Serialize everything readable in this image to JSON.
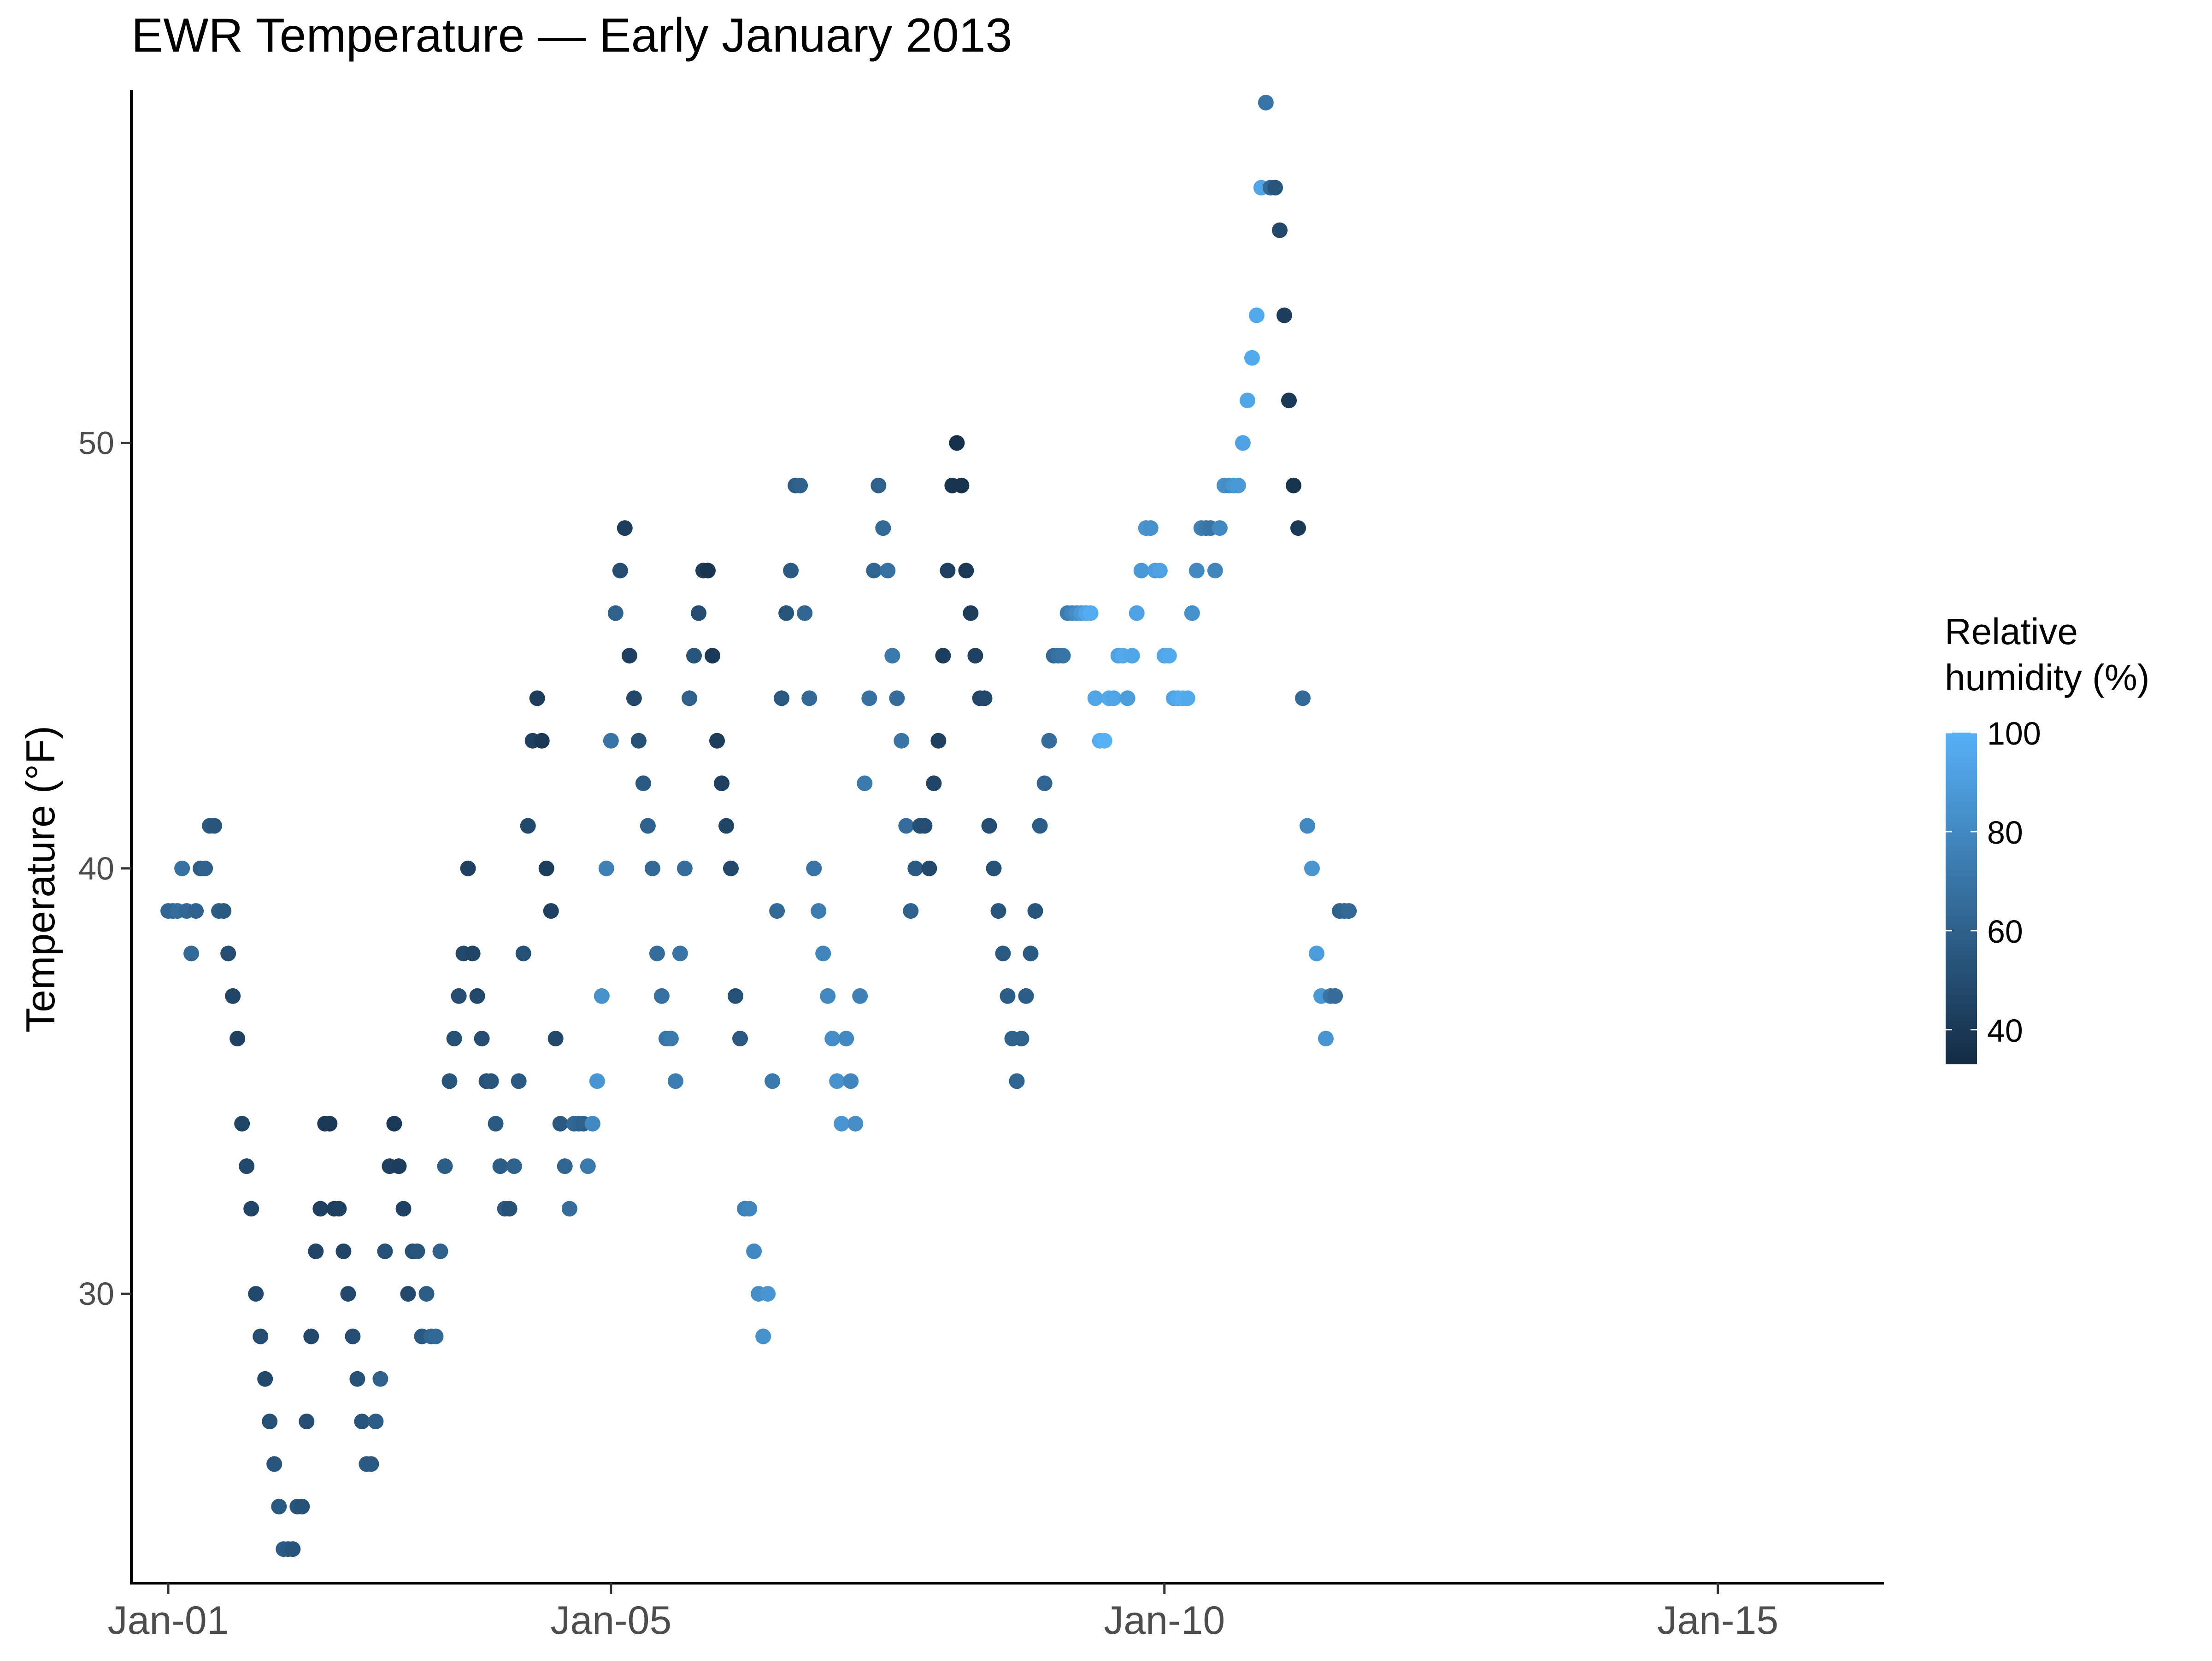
{
  "chart_data": {
    "type": "scatter",
    "title": "EWR Temperature — Early January 2013",
    "xlabel": "",
    "ylabel": "Temperature (°F)",
    "x_unit": "date",
    "x_ticks": [
      "2013-01-01",
      "2013-01-05",
      "2013-01-10",
      "2013-01-15"
    ],
    "x_tick_labels": [
      "Jan-01",
      "Jan-05",
      "Jan-10",
      "Jan-15"
    ],
    "xlim": [
      "2012-12-31T16:00",
      "2013-01-16T12:00"
    ],
    "y_ticks": [
      30,
      40,
      50
    ],
    "ylim": [
      23.2,
      58.3
    ],
    "grid": false,
    "legend": {
      "title_lines": [
        "Relative",
        "humidity (%)"
      ],
      "position": "right",
      "ticks": [
        40,
        60,
        80,
        100
      ],
      "range": [
        33,
        100
      ],
      "color_low": "#132B43",
      "color_high": "#56B1F7"
    },
    "point_fields": [
      "datetime",
      "temp_f",
      "humidity_pct"
    ],
    "points": [
      [
        "2013-01-01T00:00",
        39,
        62
      ],
      [
        "2013-01-01T01:00",
        39,
        62
      ],
      [
        "2013-01-01T02:00",
        39,
        66
      ],
      [
        "2013-01-01T03:00",
        40,
        68
      ],
      [
        "2013-01-01T04:00",
        39,
        63
      ],
      [
        "2013-01-01T05:00",
        38,
        64
      ],
      [
        "2013-01-01T06:00",
        39,
        60
      ],
      [
        "2013-01-01T07:00",
        40,
        58
      ],
      [
        "2013-01-01T08:00",
        40,
        60
      ],
      [
        "2013-01-01T09:00",
        41,
        56
      ],
      [
        "2013-01-01T10:00",
        41,
        54
      ],
      [
        "2013-01-01T11:00",
        39,
        58
      ],
      [
        "2013-01-01T12:00",
        39,
        56
      ],
      [
        "2013-01-01T13:00",
        38,
        50
      ],
      [
        "2013-01-01T14:00",
        37,
        46
      ],
      [
        "2013-01-01T15:00",
        36,
        44
      ],
      [
        "2013-01-01T16:00",
        34,
        46
      ],
      [
        "2013-01-01T17:00",
        33,
        48
      ],
      [
        "2013-01-01T18:00",
        32,
        46
      ],
      [
        "2013-01-01T19:00",
        30,
        48
      ],
      [
        "2013-01-01T20:00",
        29,
        50
      ],
      [
        "2013-01-01T21:00",
        28,
        48
      ],
      [
        "2013-01-01T22:00",
        27,
        52
      ],
      [
        "2013-01-01T23:00",
        26,
        54
      ],
      [
        "2013-01-02T00:00",
        25,
        56
      ],
      [
        "2013-01-02T01:00",
        24,
        58
      ],
      [
        "2013-01-02T02:00",
        24,
        56
      ],
      [
        "2013-01-02T03:00",
        24,
        54
      ],
      [
        "2013-01-02T04:00",
        25,
        54
      ],
      [
        "2013-01-02T05:00",
        25,
        52
      ],
      [
        "2013-01-02T06:00",
        27,
        50
      ],
      [
        "2013-01-02T07:00",
        29,
        48
      ],
      [
        "2013-01-02T08:00",
        31,
        46
      ],
      [
        "2013-01-02T09:00",
        32,
        44
      ],
      [
        "2013-01-02T10:00",
        34,
        40
      ],
      [
        "2013-01-02T11:00",
        34,
        40
      ],
      [
        "2013-01-02T12:00",
        32,
        42
      ],
      [
        "2013-01-02T13:00",
        32,
        44
      ],
      [
        "2013-01-02T14:00",
        31,
        46
      ],
      [
        "2013-01-02T15:00",
        30,
        48
      ],
      [
        "2013-01-02T16:00",
        29,
        50
      ],
      [
        "2013-01-02T17:00",
        28,
        52
      ],
      [
        "2013-01-02T18:00",
        27,
        54
      ],
      [
        "2013-01-02T19:00",
        26,
        56
      ],
      [
        "2013-01-02T20:00",
        26,
        56
      ],
      [
        "2013-01-02T21:00",
        27,
        58
      ],
      [
        "2013-01-02T22:00",
        28,
        60
      ],
      [
        "2013-01-02T23:00",
        31,
        52
      ],
      [
        "2013-01-03T00:00",
        33,
        44
      ],
      [
        "2013-01-03T01:00",
        34,
        40
      ],
      [
        "2013-01-03T02:00",
        33,
        42
      ],
      [
        "2013-01-03T03:00",
        32,
        44
      ],
      [
        "2013-01-03T04:00",
        30,
        48
      ],
      [
        "2013-01-03T05:00",
        31,
        52
      ],
      [
        "2013-01-03T06:00",
        31,
        54
      ],
      [
        "2013-01-03T07:00",
        29,
        56
      ],
      [
        "2013-01-03T08:00",
        30,
        58
      ],
      [
        "2013-01-03T09:00",
        29,
        62
      ],
      [
        "2013-01-03T10:00",
        29,
        64
      ],
      [
        "2013-01-03T11:00",
        31,
        60
      ],
      [
        "2013-01-03T12:00",
        33,
        58
      ],
      [
        "2013-01-03T13:00",
        35,
        54
      ],
      [
        "2013-01-03T14:00",
        36,
        52
      ],
      [
        "2013-01-03T15:00",
        37,
        50
      ],
      [
        "2013-01-03T16:00",
        38,
        48
      ],
      [
        "2013-01-03T17:00",
        40,
        44
      ],
      [
        "2013-01-03T18:00",
        38,
        46
      ],
      [
        "2013-01-03T19:00",
        37,
        48
      ],
      [
        "2013-01-03T20:00",
        36,
        50
      ],
      [
        "2013-01-03T21:00",
        35,
        52
      ],
      [
        "2013-01-03T22:00",
        35,
        54
      ],
      [
        "2013-01-03T23:00",
        34,
        56
      ],
      [
        "2013-01-04T00:00",
        33,
        58
      ],
      [
        "2013-01-04T01:00",
        32,
        56
      ],
      [
        "2013-01-04T02:00",
        32,
        52
      ],
      [
        "2013-01-04T03:00",
        33,
        60
      ],
      [
        "2013-01-04T04:00",
        35,
        56
      ],
      [
        "2013-01-04T05:00",
        38,
        52
      ],
      [
        "2013-01-04T06:00",
        41,
        48
      ],
      [
        "2013-01-04T07:00",
        43,
        44
      ],
      [
        "2013-01-04T08:00",
        44,
        42
      ],
      [
        "2013-01-04T09:00",
        43,
        40
      ],
      [
        "2013-01-04T10:00",
        40,
        42
      ],
      [
        "2013-01-04T11:00",
        39,
        44
      ],
      [
        "2013-01-04T12:00",
        36,
        48
      ],
      [
        "2013-01-04T13:00",
        34,
        56
      ],
      [
        "2013-01-04T14:00",
        33,
        62
      ],
      [
        "2013-01-04T15:00",
        32,
        66
      ],
      [
        "2013-01-04T16:00",
        34,
        64
      ],
      [
        "2013-01-04T17:00",
        34,
        62
      ],
      [
        "2013-01-04T18:00",
        34,
        60
      ],
      [
        "2013-01-04T19:00",
        33,
        72
      ],
      [
        "2013-01-04T20:00",
        34,
        80
      ],
      [
        "2013-01-04T21:00",
        35,
        86
      ],
      [
        "2013-01-04T22:00",
        37,
        84
      ],
      [
        "2013-01-04T23:00",
        40,
        76
      ],
      [
        "2013-01-05T00:00",
        43,
        70
      ],
      [
        "2013-01-05T01:00",
        46,
        60
      ],
      [
        "2013-01-05T02:00",
        47,
        50
      ],
      [
        "2013-01-05T03:00",
        48,
        42
      ],
      [
        "2013-01-05T04:00",
        45,
        44
      ],
      [
        "2013-01-05T05:00",
        44,
        48
      ],
      [
        "2013-01-05T06:00",
        43,
        52
      ],
      [
        "2013-01-05T07:00",
        42,
        56
      ],
      [
        "2013-01-05T08:00",
        41,
        60
      ],
      [
        "2013-01-05T09:00",
        40,
        64
      ],
      [
        "2013-01-05T10:00",
        38,
        66
      ],
      [
        "2013-01-05T11:00",
        37,
        68
      ],
      [
        "2013-01-05T12:00",
        36,
        70
      ],
      [
        "2013-01-05T13:00",
        36,
        72
      ],
      [
        "2013-01-05T14:00",
        35,
        74
      ],
      [
        "2013-01-05T15:00",
        38,
        70
      ],
      [
        "2013-01-05T16:00",
        40,
        66
      ],
      [
        "2013-01-05T17:00",
        44,
        60
      ],
      [
        "2013-01-05T18:00",
        45,
        54
      ],
      [
        "2013-01-05T19:00",
        46,
        50
      ],
      [
        "2013-01-05T20:00",
        47,
        42
      ],
      [
        "2013-01-05T21:00",
        47,
        38
      ],
      [
        "2013-01-05T22:00",
        45,
        40
      ],
      [
        "2013-01-05T23:00",
        43,
        42
      ],
      [
        "2013-01-06T00:00",
        42,
        44
      ],
      [
        "2013-01-06T01:00",
        41,
        46
      ],
      [
        "2013-01-06T02:00",
        40,
        48
      ],
      [
        "2013-01-06T03:00",
        37,
        52
      ],
      [
        "2013-01-06T04:00",
        36,
        56
      ],
      [
        "2013-01-06T05:00",
        32,
        76
      ],
      [
        "2013-01-06T06:00",
        32,
        78
      ],
      [
        "2013-01-06T07:00",
        31,
        80
      ],
      [
        "2013-01-06T08:00",
        30,
        82
      ],
      [
        "2013-01-06T09:00",
        29,
        84
      ],
      [
        "2013-01-06T10:00",
        30,
        86
      ],
      [
        "2013-01-06T11:00",
        35,
        72
      ],
      [
        "2013-01-06T12:00",
        39,
        64
      ],
      [
        "2013-01-06T13:00",
        44,
        56
      ],
      [
        "2013-01-06T14:00",
        46,
        54
      ],
      [
        "2013-01-06T15:00",
        47,
        56
      ],
      [
        "2013-01-06T16:00",
        49,
        58
      ],
      [
        "2013-01-06T17:00",
        49,
        60
      ],
      [
        "2013-01-06T18:00",
        46,
        62
      ],
      [
        "2013-01-06T19:00",
        44,
        64
      ],
      [
        "2013-01-06T20:00",
        40,
        70
      ],
      [
        "2013-01-06T21:00",
        39,
        74
      ],
      [
        "2013-01-06T22:00",
        38,
        78
      ],
      [
        "2013-01-06T23:00",
        37,
        80
      ],
      [
        "2013-01-07T00:00",
        36,
        82
      ],
      [
        "2013-01-07T01:00",
        35,
        84
      ],
      [
        "2013-01-07T02:00",
        34,
        86
      ],
      [
        "2013-01-07T03:00",
        36,
        80
      ],
      [
        "2013-01-07T04:00",
        35,
        78
      ],
      [
        "2013-01-07T05:00",
        34,
        82
      ],
      [
        "2013-01-07T06:00",
        37,
        76
      ],
      [
        "2013-01-07T07:00",
        42,
        72
      ],
      [
        "2013-01-07T08:00",
        44,
        68
      ],
      [
        "2013-01-07T09:00",
        47,
        62
      ],
      [
        "2013-01-07T10:00",
        49,
        60
      ],
      [
        "2013-01-07T11:00",
        48,
        64
      ],
      [
        "2013-01-07T12:00",
        47,
        68
      ],
      [
        "2013-01-07T13:00",
        45,
        72
      ],
      [
        "2013-01-07T14:00",
        44,
        66
      ],
      [
        "2013-01-07T15:00",
        43,
        70
      ],
      [
        "2013-01-07T16:00",
        41,
        66
      ],
      [
        "2013-01-07T17:00",
        39,
        60
      ],
      [
        "2013-01-07T18:00",
        40,
        56
      ],
      [
        "2013-01-07T19:00",
        41,
        52
      ],
      [
        "2013-01-07T20:00",
        41,
        50
      ],
      [
        "2013-01-07T21:00",
        40,
        48
      ],
      [
        "2013-01-07T22:00",
        42,
        46
      ],
      [
        "2013-01-07T23:00",
        43,
        44
      ],
      [
        "2013-01-08T00:00",
        45,
        42
      ],
      [
        "2013-01-08T01:00",
        47,
        44
      ],
      [
        "2013-01-08T02:00",
        49,
        38
      ],
      [
        "2013-01-08T03:00",
        50,
        36
      ],
      [
        "2013-01-08T04:00",
        49,
        38
      ],
      [
        "2013-01-08T05:00",
        47,
        40
      ],
      [
        "2013-01-08T06:00",
        46,
        42
      ],
      [
        "2013-01-08T07:00",
        45,
        44
      ],
      [
        "2013-01-08T08:00",
        44,
        46
      ],
      [
        "2013-01-08T09:00",
        44,
        48
      ],
      [
        "2013-01-08T10:00",
        41,
        50
      ],
      [
        "2013-01-08T11:00",
        40,
        52
      ],
      [
        "2013-01-08T12:00",
        39,
        54
      ],
      [
        "2013-01-08T13:00",
        38,
        56
      ],
      [
        "2013-01-08T14:00",
        37,
        58
      ],
      [
        "2013-01-08T15:00",
        36,
        60
      ],
      [
        "2013-01-08T16:00",
        35,
        62
      ],
      [
        "2013-01-08T17:00",
        36,
        60
      ],
      [
        "2013-01-08T18:00",
        37,
        58
      ],
      [
        "2013-01-08T19:00",
        38,
        56
      ],
      [
        "2013-01-08T20:00",
        39,
        54
      ],
      [
        "2013-01-08T21:00",
        41,
        58
      ],
      [
        "2013-01-08T22:00",
        42,
        62
      ],
      [
        "2013-01-08T23:00",
        43,
        66
      ],
      [
        "2013-01-09T00:00",
        45,
        64
      ],
      [
        "2013-01-09T01:00",
        45,
        68
      ],
      [
        "2013-01-09T02:00",
        45,
        70
      ],
      [
        "2013-01-09T03:00",
        46,
        74
      ],
      [
        "2013-01-09T04:00",
        46,
        78
      ],
      [
        "2013-01-09T05:00",
        46,
        82
      ],
      [
        "2013-01-09T06:00",
        46,
        88
      ],
      [
        "2013-01-09T07:00",
        46,
        94
      ],
      [
        "2013-01-09T08:00",
        46,
        98
      ],
      [
        "2013-01-09T09:00",
        44,
        94
      ],
      [
        "2013-01-09T10:00",
        43,
        98
      ],
      [
        "2013-01-09T11:00",
        43,
        100
      ],
      [
        "2013-01-09T12:00",
        44,
        96
      ],
      [
        "2013-01-09T13:00",
        44,
        94
      ],
      [
        "2013-01-09T14:00",
        45,
        92
      ],
      [
        "2013-01-09T15:00",
        45,
        96
      ],
      [
        "2013-01-09T16:00",
        44,
        90
      ],
      [
        "2013-01-09T17:00",
        45,
        94
      ],
      [
        "2013-01-09T18:00",
        46,
        92
      ],
      [
        "2013-01-09T19:00",
        47,
        88
      ],
      [
        "2013-01-09T20:00",
        48,
        86
      ],
      [
        "2013-01-09T21:00",
        48,
        84
      ],
      [
        "2013-01-09T22:00",
        47,
        90
      ],
      [
        "2013-01-09T23:00",
        47,
        92
      ],
      [
        "2013-01-10T00:00",
        45,
        94
      ],
      [
        "2013-01-10T01:00",
        45,
        96
      ],
      [
        "2013-01-10T02:00",
        44,
        94
      ],
      [
        "2013-01-10T03:00",
        44,
        96
      ],
      [
        "2013-01-10T04:00",
        44,
        98
      ],
      [
        "2013-01-10T05:00",
        44,
        96
      ],
      [
        "2013-01-10T06:00",
        46,
        84
      ],
      [
        "2013-01-10T07:00",
        47,
        80
      ],
      [
        "2013-01-10T08:00",
        48,
        76
      ],
      [
        "2013-01-10T09:00",
        48,
        72
      ],
      [
        "2013-01-10T10:00",
        48,
        70
      ],
      [
        "2013-01-10T11:00",
        47,
        78
      ],
      [
        "2013-01-10T12:00",
        48,
        80
      ],
      [
        "2013-01-10T13:00",
        49,
        84
      ],
      [
        "2013-01-10T14:00",
        49,
        82
      ],
      [
        "2013-01-10T15:00",
        49,
        86
      ],
      [
        "2013-01-10T16:00",
        49,
        88
      ],
      [
        "2013-01-10T17:00",
        50,
        92
      ],
      [
        "2013-01-10T18:00",
        51,
        94
      ],
      [
        "2013-01-10T19:00",
        52,
        96
      ],
      [
        "2013-01-10T20:00",
        53,
        96
      ],
      [
        "2013-01-10T21:00",
        56,
        94
      ],
      [
        "2013-01-10T22:00",
        58,
        70
      ],
      [
        "2013-01-10T23:00",
        56,
        64
      ],
      [
        "2013-01-11T00:00",
        56,
        54
      ],
      [
        "2013-01-11T01:00",
        55,
        48
      ],
      [
        "2013-01-11T02:00",
        53,
        42
      ],
      [
        "2013-01-11T03:00",
        51,
        40
      ],
      [
        "2013-01-11T04:00",
        49,
        38
      ],
      [
        "2013-01-11T05:00",
        48,
        40
      ],
      [
        "2013-01-11T06:00",
        44,
        64
      ],
      [
        "2013-01-11T07:00",
        41,
        80
      ],
      [
        "2013-01-11T08:00",
        40,
        86
      ],
      [
        "2013-01-11T09:00",
        38,
        90
      ],
      [
        "2013-01-11T10:00",
        37,
        88
      ],
      [
        "2013-01-11T11:00",
        36,
        86
      ],
      [
        "2013-01-11T12:00",
        37,
        70
      ],
      [
        "2013-01-11T13:00",
        37,
        66
      ],
      [
        "2013-01-11T14:00",
        39,
        60
      ],
      [
        "2013-01-11T15:00",
        39,
        62
      ],
      [
        "2013-01-11T16:00",
        39,
        64
      ]
    ]
  }
}
